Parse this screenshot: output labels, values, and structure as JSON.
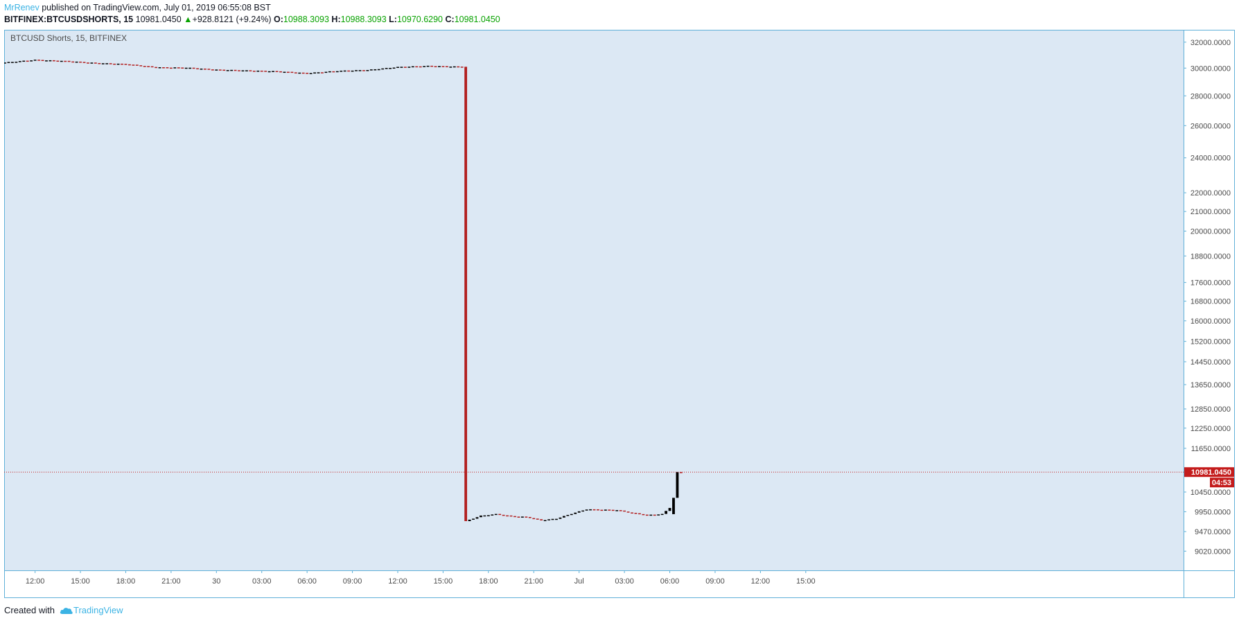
{
  "header": {
    "user": "MrRenev",
    "published_text": "published on TradingView.com, July 01, 2019 06:55:08 BST",
    "symbol": "BITFINEX:BTCUSDSHORTS, 15",
    "price": "10981.0450",
    "change": "+928.8121 (+9.24%)",
    "o_label": "O:",
    "o_value": "10988.3093",
    "h_label": "H:",
    "h_value": "10988.3093",
    "l_label": "L:",
    "l_value": "10970.6290",
    "c_label": "C:",
    "c_value": "10981.0450"
  },
  "footer": {
    "created_with": "Created with",
    "brand": "TradingView"
  },
  "colors": {
    "background": "#dce8f4",
    "axis_border": "#5fb0d8",
    "bear": "#b21f1f",
    "bull": "#000000",
    "last_price": "#c41c1c"
  },
  "chart_data": {
    "type": "candlestick",
    "title": "BTCUSD Shorts, 15, BITFINEX",
    "scale": "log",
    "ylim": [
      8600,
      33000
    ],
    "last_price_label": "10981.0450",
    "countdown_label": "04:53",
    "y_ticks": [
      "32000.0000",
      "30000.0000",
      "28000.0000",
      "26000.0000",
      "24000.0000",
      "22000.0000",
      "21000.0000",
      "20000.0000",
      "18800.0000",
      "17600.0000",
      "16800.0000",
      "16000.0000",
      "15200.0000",
      "14450.0000",
      "13650.0000",
      "12850.0000",
      "12250.0000",
      "11650.0000",
      "10450.0000",
      "9950.0000",
      "9470.0000",
      "9020.0000"
    ],
    "x_ticks": [
      "12:00",
      "15:00",
      "18:00",
      "21:00",
      "30",
      "03:00",
      "06:00",
      "09:00",
      "12:00",
      "15:00",
      "18:00",
      "21:00",
      "Jul",
      "03:00",
      "06:00",
      "09:00",
      "12:00",
      "15:00"
    ],
    "segments": [
      {
        "name": "",
        "start": "2019-06-29 10:00",
        "end": "2019-06-30 16:15",
        "points": [
          [
            "2019-06-29 10:00",
            30420
          ],
          [
            "2019-06-29 12:00",
            30620
          ],
          [
            "2019-06-29 14:00",
            30530
          ],
          [
            "2019-06-29 16:00",
            30380
          ],
          [
            "2019-06-29 18:00",
            30300
          ],
          [
            "2019-06-29 20:00",
            30060
          ],
          [
            "2019-06-29 22:00",
            30030
          ],
          [
            "2019-06-30 00:00",
            29880
          ],
          [
            "2019-06-30 02:00",
            29820
          ],
          [
            "2019-06-30 04:00",
            29760
          ],
          [
            "2019-06-30 06:00",
            29620
          ],
          [
            "2019-06-30 08:00",
            29790
          ],
          [
            "2019-06-30 10:00",
            29860
          ],
          [
            "2019-06-30 12:00",
            30080
          ],
          [
            "2019-06-30 14:00",
            30160
          ],
          [
            "2019-06-30 16:15",
            30100
          ]
        ]
      },
      {
        "name": "",
        "start": "2019-06-30 16:30",
        "end": "2019-07-01 06:45",
        "points": [
          [
            "2019-06-30 16:30",
            9720
          ],
          [
            "2019-06-30 17:30",
            9850
          ],
          [
            "2019-06-30 18:30",
            9890
          ],
          [
            "2019-06-30 19:30",
            9840
          ],
          [
            "2019-06-30 20:30",
            9820
          ],
          [
            "2019-06-30 21:30",
            9740
          ],
          [
            "2019-06-30 22:30",
            9780
          ],
          [
            "2019-06-30 23:30",
            9900
          ],
          [
            "2019-07-01 00:30",
            10010
          ],
          [
            "2019-07-01 01:30",
            10000
          ],
          [
            "2019-07-01 02:30",
            9990
          ],
          [
            "2019-07-01 03:30",
            9920
          ],
          [
            "2019-07-01 04:30",
            9870
          ],
          [
            "2019-07-01 05:30",
            9890
          ],
          [
            "2019-07-01 06:00",
            10050
          ],
          [
            "2019-07-01 06:30",
            10981
          ]
        ]
      }
    ],
    "events": [
      {
        "time": "2019-06-30 16:30",
        "open": 30100,
        "close": 9720,
        "color": "bear"
      },
      {
        "time": "2019-07-01 06:15",
        "open": 9890,
        "close": 10300,
        "color": "bull"
      },
      {
        "time": "2019-07-01 06:30",
        "open": 10300,
        "close": 10981,
        "color": "bull"
      }
    ],
    "last_price": 10981.045,
    "xlim": [
      "2019-06-29 10:00",
      "2019-07-02 16:00"
    ]
  }
}
